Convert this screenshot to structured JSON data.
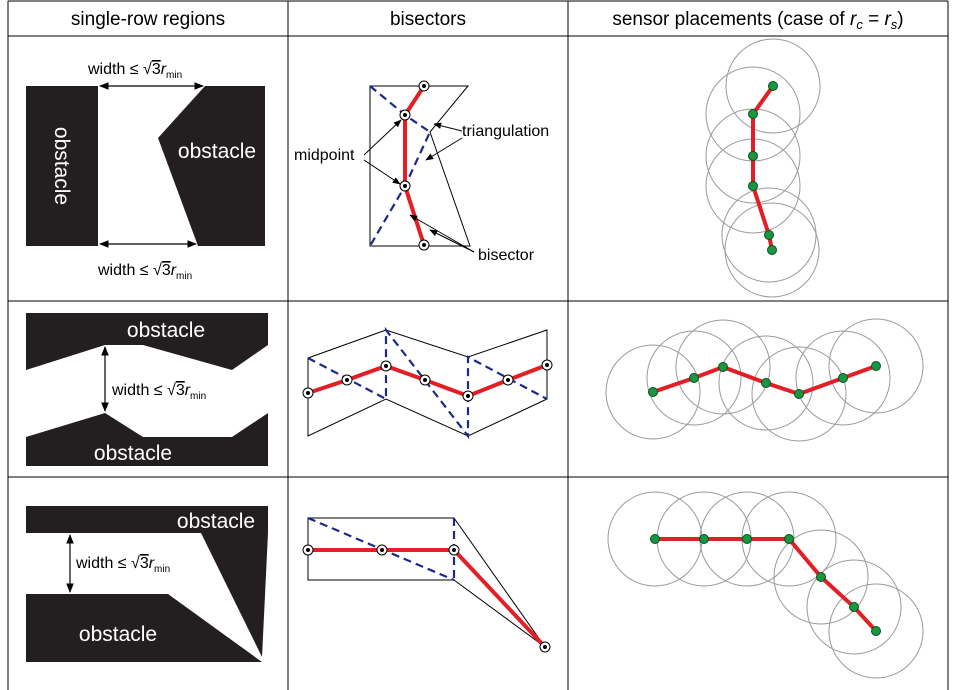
{
  "table": {
    "headers": {
      "col1": "single-row regions",
      "col2": "bisectors",
      "col3_prefix": "sensor placements (case of ",
      "r": "r",
      "c": "c",
      "eq": " = ",
      "s": "s",
      "close": ")"
    }
  },
  "labels": {
    "obstacle": "obstacle",
    "width_prefix": "width ≤ ",
    "sqrt_sign": "√",
    "three": "3",
    "r": "r",
    "min": "min",
    "midpoint": "midpoint",
    "triangulation": "triangulation",
    "bisector": "bisector"
  },
  "colors": {
    "obstacle": "#231f20",
    "bisector": "#e31e24",
    "triangulation": "#1b2a8a",
    "sensor": "#1a9641",
    "circle": "#9a9a9a",
    "grid": "#000000"
  }
}
